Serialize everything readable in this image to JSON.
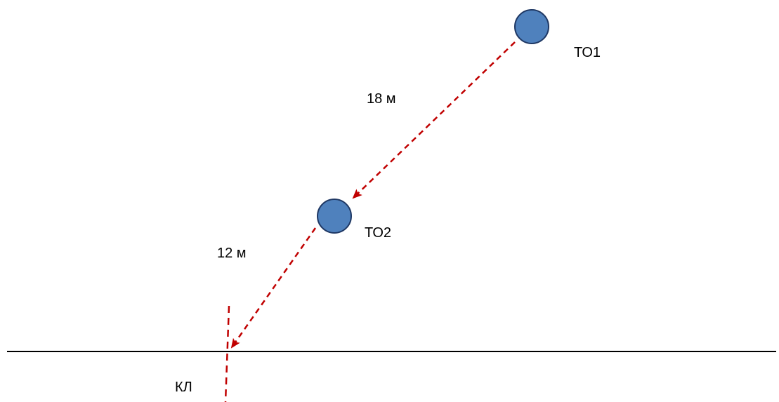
{
  "diagram": {
    "nodes": {
      "to1": {
        "label": "ТО1"
      },
      "to2": {
        "label": "ТО2"
      }
    },
    "edges": {
      "to1_to2": {
        "distance_label": "18 м"
      },
      "to2_kl": {
        "distance_label": "12 м"
      }
    },
    "line": {
      "label": "КЛ"
    },
    "colors": {
      "node_fill": "#4f81bd",
      "node_stroke": "#1f3864",
      "edge": "#c00000",
      "line": "#000000"
    }
  }
}
